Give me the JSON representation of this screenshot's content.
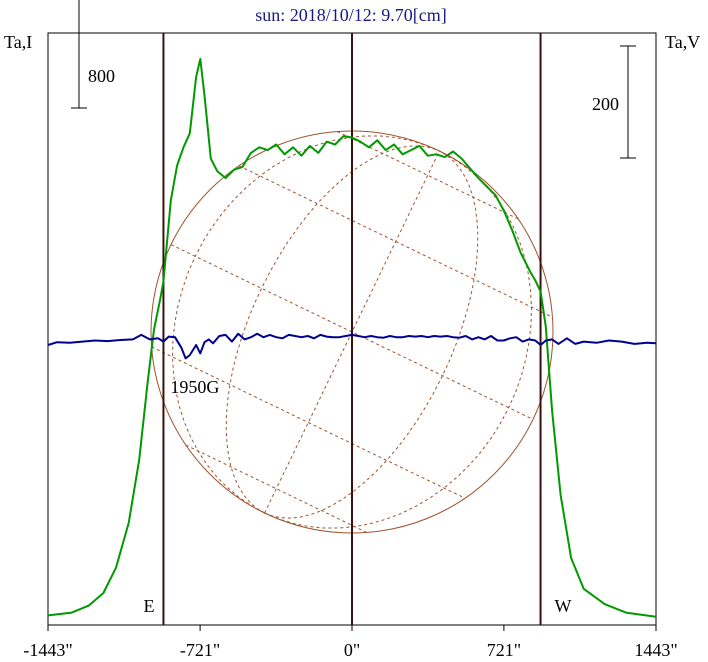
{
  "chart_data": {
    "type": "line",
    "title": "sun: 2018/10/12: 9.70[cm]",
    "left_axis_label": "Ta,I",
    "right_axis_label": "Ta,V",
    "x_unit": "arcsec",
    "xlim": [
      -1443,
      1443
    ],
    "x_ticks": [
      -1443,
      -721,
      0,
      721,
      1443
    ],
    "x_tick_labels": [
      "-1443\"",
      "-721\"",
      "0\"",
      "721\"",
      "1443\""
    ],
    "limb_markers": [
      {
        "x": -895,
        "label": "E"
      },
      {
        "x": 895,
        "label": "W"
      }
    ],
    "center_line_x": 0,
    "scale_bars": [
      {
        "axis": "left",
        "value": 800,
        "label": "800"
      },
      {
        "axis": "right",
        "value": 200,
        "label": "200"
      }
    ],
    "annotations": [
      {
        "text": "1950G",
        "x": -720,
        "near_series": "V"
      }
    ],
    "series": [
      {
        "name": "I",
        "color": "#009a00",
        "axis": "left",
        "x": [
          -1443,
          -1330,
          -1250,
          -1180,
          -1120,
          -1060,
          -1010,
          -970,
          -940,
          -910,
          -895,
          -860,
          -830,
          -800,
          -770,
          -740,
          -720,
          -700,
          -670,
          -640,
          -600,
          -560,
          -520,
          -480,
          -440,
          -400,
          -360,
          -320,
          -280,
          -240,
          -200,
          -160,
          -120,
          -80,
          -40,
          0,
          40,
          80,
          120,
          160,
          200,
          240,
          280,
          320,
          360,
          400,
          440,
          480,
          520,
          560,
          600,
          640,
          680,
          720,
          760,
          800,
          850,
          870,
          895,
          920,
          950,
          990,
          1040,
          1100,
          1200,
          1300,
          1443
        ],
        "y": [
          40,
          60,
          110,
          200,
          380,
          700,
          1150,
          1700,
          2080,
          2300,
          2420,
          3000,
          3250,
          3380,
          3480,
          3880,
          4010,
          3750,
          3300,
          3210,
          3160,
          3220,
          3240,
          3340,
          3380,
          3360,
          3400,
          3330,
          3380,
          3320,
          3390,
          3340,
          3420,
          3400,
          3460,
          3450,
          3420,
          3380,
          3430,
          3360,
          3400,
          3330,
          3360,
          3390,
          3320,
          3330,
          3310,
          3350,
          3300,
          3230,
          3160,
          3100,
          3040,
          2930,
          2790,
          2630,
          2480,
          2430,
          2350,
          2100,
          1500,
          900,
          450,
          230,
          120,
          60,
          30
        ]
      },
      {
        "name": "V",
        "color": "#000090",
        "axis": "right",
        "x": [
          -1443,
          -1400,
          -1340,
          -1280,
          -1220,
          -1160,
          -1100,
          -1040,
          -1000,
          -960,
          -920,
          -895,
          -870,
          -840,
          -810,
          -790,
          -770,
          -740,
          -720,
          -700,
          -680,
          -660,
          -630,
          -600,
          -570,
          -540,
          -510,
          -480,
          -450,
          -420,
          -390,
          -360,
          -330,
          -300,
          -270,
          -240,
          -210,
          -180,
          -150,
          -120,
          -90,
          -60,
          -30,
          0,
          30,
          60,
          90,
          120,
          150,
          180,
          210,
          240,
          270,
          300,
          330,
          360,
          390,
          420,
          450,
          480,
          510,
          540,
          570,
          600,
          630,
          660,
          690,
          720,
          750,
          780,
          810,
          840,
          870,
          895,
          920,
          950,
          980,
          1020,
          1060,
          1100,
          1160,
          1220,
          1280,
          1340,
          1400,
          1443
        ],
        "y": [
          0,
          5,
          4,
          6,
          8,
          7,
          9,
          10,
          18,
          10,
          12,
          6,
          15,
          14,
          -5,
          -24,
          -18,
          0,
          -15,
          5,
          10,
          3,
          16,
          18,
          6,
          20,
          10,
          14,
          20,
          14,
          18,
          14,
          12,
          18,
          16,
          14,
          16,
          12,
          18,
          15,
          14,
          14,
          16,
          18,
          16,
          14,
          16,
          14,
          13,
          16,
          14,
          14,
          16,
          15,
          16,
          14,
          16,
          15,
          16,
          14,
          13,
          16,
          10,
          14,
          10,
          16,
          8,
          8,
          12,
          14,
          6,
          10,
          8,
          0,
          8,
          10,
          2,
          12,
          2,
          6,
          4,
          8,
          6,
          2,
          4,
          3
        ]
      }
    ]
  }
}
